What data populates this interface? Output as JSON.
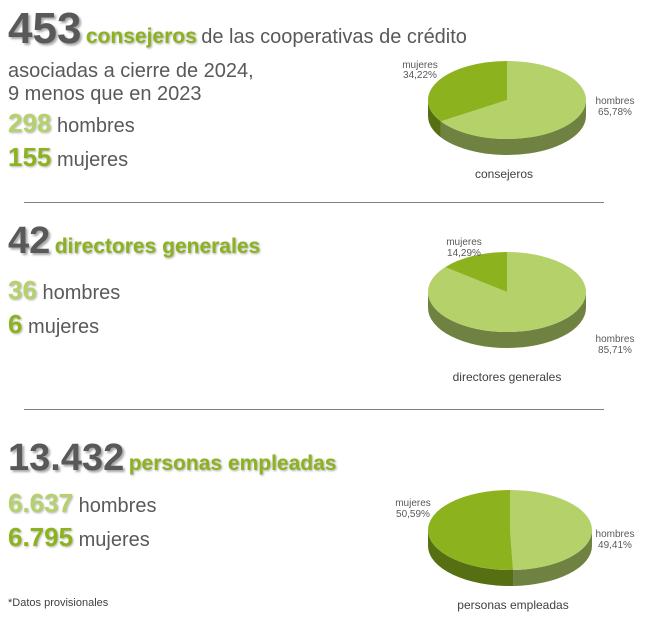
{
  "colors": {
    "men": "#b5d16a",
    "women": "#8cb31e",
    "text": "#595959"
  },
  "sections": [
    {
      "big_number": "453",
      "big_label": "consejeros",
      "rest": "de las cooperativas de crédito",
      "sub_lines": [
        "asociadas a cierre de 2024,",
        "9 menos que en 2023"
      ],
      "men": {
        "value": "298",
        "label": "hombres"
      },
      "women": {
        "value": "155",
        "label": "mujeres"
      }
    },
    {
      "big_number": "42",
      "big_label": "directores generales",
      "rest": "",
      "sub_lines": [],
      "men": {
        "value": "36",
        "label": "hombres"
      },
      "women": {
        "value": "6",
        "label": "mujeres"
      }
    },
    {
      "big_number": "13.432",
      "big_label": "personas empleadas",
      "rest": "",
      "sub_lines": [],
      "men": {
        "value": "6.637",
        "label": "hombres"
      },
      "women": {
        "value": "6.795",
        "label": "mujeres"
      }
    }
  ],
  "chart_data": [
    {
      "type": "pie",
      "title": "consejeros",
      "categories": [
        "hombres",
        "mujeres"
      ],
      "values": [
        65.78,
        34.22
      ],
      "value_labels": [
        "65,78%",
        "34,22%"
      ],
      "colors": [
        "#b5d16a",
        "#8cb31e"
      ]
    },
    {
      "type": "pie",
      "title": "directores generales",
      "categories": [
        "hombres",
        "mujeres"
      ],
      "values": [
        85.71,
        14.29
      ],
      "value_labels": [
        "85,71%",
        "14,29%"
      ],
      "colors": [
        "#b5d16a",
        "#8cb31e"
      ]
    },
    {
      "type": "pie",
      "title": "personas empleadas",
      "categories": [
        "hombres",
        "mujeres"
      ],
      "values": [
        49.41,
        50.59
      ],
      "value_labels": [
        "49,41%",
        "50,59%"
      ],
      "colors": [
        "#b5d16a",
        "#8cb31e"
      ]
    }
  ],
  "footnote": "*Datos provisionales"
}
